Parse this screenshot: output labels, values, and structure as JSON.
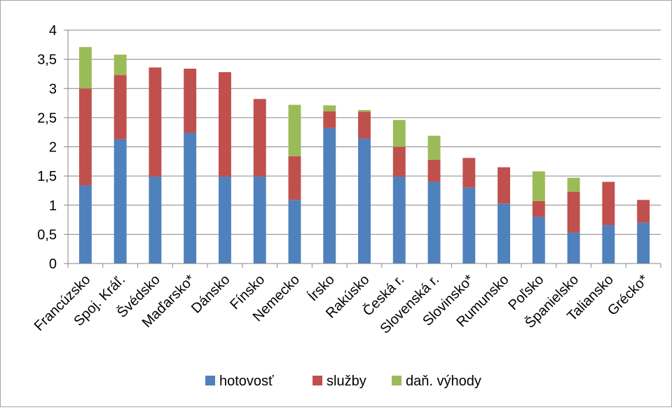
{
  "chart_data": {
    "type": "bar",
    "stacked": true,
    "categories": [
      "Francúzsko",
      "Spoj. Kráľ.",
      "Švédsko",
      "Maďarsko*",
      "Dánsko",
      "Fínsko",
      "Nemecko",
      "Írsko",
      "Rakúsko",
      "Česká r.",
      "Slovenská r.",
      "Slovinsko*",
      "Rumunsko",
      "Poľsko",
      "Španielsko",
      "Taliansko",
      "Grécko*"
    ],
    "series": [
      {
        "name": "hotovosť",
        "color": "#4f81bd",
        "values": [
          1.34,
          2.13,
          1.49,
          2.24,
          1.49,
          1.49,
          1.09,
          2.32,
          2.14,
          1.49,
          1.4,
          1.3,
          1.03,
          0.8,
          0.53,
          0.66,
          0.7
        ]
      },
      {
        "name": "služby",
        "color": "#c0504d",
        "values": [
          1.66,
          1.1,
          1.87,
          1.1,
          1.79,
          1.33,
          0.75,
          0.29,
          0.46,
          0.51,
          0.38,
          0.51,
          0.62,
          0.27,
          0.7,
          0.74,
          0.39
        ]
      },
      {
        "name": "daň. výhody",
        "color": "#9bbb59",
        "values": [
          0.71,
          0.35,
          0.0,
          0.0,
          0.0,
          0.0,
          0.88,
          0.1,
          0.03,
          0.46,
          0.41,
          0.0,
          0.0,
          0.51,
          0.24,
          0.0,
          0.0
        ]
      }
    ],
    "y_ticks": [
      "0",
      "0,5",
      "1",
      "1,5",
      "2",
      "2,5",
      "3",
      "3,5",
      "4"
    ],
    "ylim": [
      0,
      4
    ],
    "grid": true,
    "legend_position": "bottom"
  }
}
